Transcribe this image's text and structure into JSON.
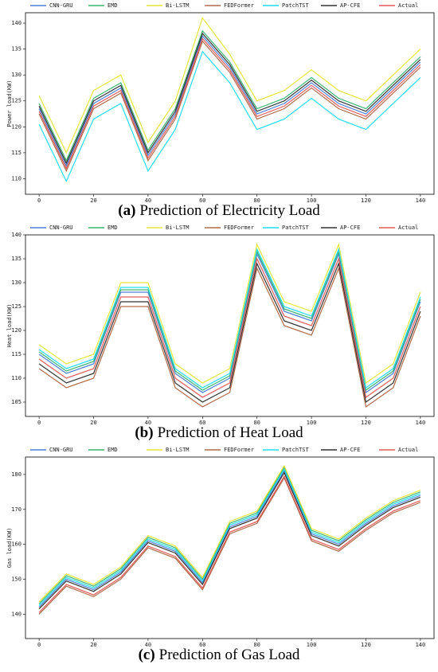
{
  "chart_data": [
    {
      "type": "line",
      "caption_label": "(a)",
      "caption_text": "Prediction of Electricity Load",
      "ylabel": "Power load(KW)",
      "x": [
        0,
        10,
        20,
        30,
        40,
        50,
        60,
        70,
        80,
        90,
        100,
        110,
        120,
        130,
        140
      ],
      "xlim": [
        -5,
        145
      ],
      "xticks": [
        0,
        20,
        40,
        60,
        80,
        100,
        120,
        140
      ],
      "ylim": [
        107,
        142
      ],
      "yticks": [
        110,
        115,
        120,
        125,
        130,
        135,
        140
      ],
      "grid": false,
      "series": [
        {
          "name": "CNN-GRU",
          "color": "#4a7fd6",
          "values": [
            123.5,
            112.5,
            124.5,
            127.5,
            114.5,
            122.5,
            137.5,
            131.5,
            122.5,
            124.5,
            128.5,
            124.5,
            122.5,
            127.5,
            132.5
          ]
        },
        {
          "name": "EMD",
          "color": "#3cb371",
          "values": [
            124.5,
            113.5,
            125.5,
            128.5,
            115.5,
            123.5,
            138.5,
            132.5,
            123.5,
            125.5,
            129.5,
            125.5,
            123.5,
            128.5,
            133.5
          ]
        },
        {
          "name": "Bi-LSTM",
          "color": "#e6e63c",
          "values": [
            126,
            115,
            127,
            130,
            117,
            125,
            141,
            134,
            125,
            127,
            131,
            127,
            125,
            130,
            135
          ]
        },
        {
          "name": "FEDFormer",
          "color": "#b06a4a",
          "values": [
            122.5,
            111.5,
            123.5,
            126.5,
            113.5,
            121.5,
            136.5,
            130.5,
            121.5,
            123.5,
            127.5,
            123.5,
            121.5,
            126.5,
            131.5
          ]
        },
        {
          "name": "PatchTST",
          "color": "#22dcf0",
          "values": [
            120.5,
            109.5,
            121.5,
            124.5,
            111.5,
            119.5,
            134.5,
            128.5,
            119.5,
            121.5,
            125.5,
            121.5,
            119.5,
            124.5,
            129.5
          ]
        },
        {
          "name": "AP-CFE",
          "color": "#333333",
          "values": [
            124,
            113,
            125,
            128,
            115,
            123,
            138,
            132,
            123,
            125,
            129,
            125,
            123,
            128,
            133
          ]
        },
        {
          "name": "Actual",
          "color": "#e05a5a",
          "values": [
            123,
            112,
            124,
            127,
            114,
            122,
            137,
            131,
            122,
            124,
            128,
            124,
            122,
            127,
            132
          ]
        }
      ]
    },
    {
      "type": "line",
      "caption_label": "(b)",
      "caption_text": "Prediction of Heat Load",
      "ylabel": "Heat load(KW)",
      "x": [
        0,
        10,
        20,
        30,
        40,
        50,
        60,
        70,
        80,
        90,
        100,
        110,
        120,
        130,
        140
      ],
      "xlim": [
        -5,
        145
      ],
      "xticks": [
        0,
        20,
        40,
        60,
        80,
        100,
        120,
        140
      ],
      "ylim": [
        102,
        140
      ],
      "yticks": [
        105,
        110,
        115,
        120,
        125,
        130,
        135,
        140
      ],
      "grid": false,
      "series": [
        {
          "name": "CNN-GRU",
          "color": "#4a7fd6",
          "values": [
            115,
            111,
            113,
            128,
            128,
            111,
            107,
            110,
            136,
            124,
            122,
            136,
            107,
            111,
            126
          ]
        },
        {
          "name": "EMD",
          "color": "#3cb371",
          "values": [
            115.5,
            111.5,
            113.5,
            128.5,
            128.5,
            111.5,
            107.5,
            110.5,
            136.5,
            124.5,
            122.5,
            136.5,
            107.5,
            111.5,
            126.5
          ]
        },
        {
          "name": "Bi-LSTM",
          "color": "#e6e63c",
          "values": [
            117,
            113,
            115,
            130,
            130,
            113,
            109,
            112,
            138,
            126,
            124,
            138,
            109,
            113,
            128
          ]
        },
        {
          "name": "FEDFormer",
          "color": "#b06a4a",
          "values": [
            112,
            108,
            110,
            125,
            125,
            108,
            104,
            107,
            133,
            121,
            119,
            133,
            104,
            108,
            123
          ]
        },
        {
          "name": "PatchTST",
          "color": "#22dcf0",
          "values": [
            116,
            112,
            114,
            129,
            129,
            112,
            108,
            111,
            137,
            125,
            123,
            137,
            108,
            112,
            127
          ]
        },
        {
          "name": "AP-CFE",
          "color": "#333333",
          "values": [
            113,
            109,
            111,
            126,
            126,
            109,
            105,
            108,
            134,
            122,
            120,
            134,
            105,
            109,
            124
          ]
        },
        {
          "name": "Actual",
          "color": "#e05a5a",
          "values": [
            114,
            110,
            112,
            127,
            127,
            110,
            106,
            109,
            135,
            123,
            121,
            135,
            106,
            110,
            125
          ]
        }
      ]
    },
    {
      "type": "line",
      "caption_label": "(c)",
      "caption_text": "Prediction of Gas Load",
      "ylabel": "Gas load(KW)",
      "x": [
        0,
        10,
        20,
        30,
        40,
        50,
        60,
        70,
        80,
        90,
        100,
        110,
        120,
        130,
        140
      ],
      "xlim": [
        -5,
        145
      ],
      "xticks": [
        0,
        20,
        40,
        60,
        80,
        100,
        120,
        140
      ],
      "ylim": [
        133,
        185
      ],
      "yticks": [
        140,
        150,
        160,
        170,
        180
      ],
      "grid": false,
      "series": [
        {
          "name": "CNN-GRU",
          "color": "#4a7fd6",
          "values": [
            142,
            150,
            147,
            152,
            161,
            158,
            149,
            165,
            168,
            181,
            163,
            160,
            166,
            171,
            174
          ]
        },
        {
          "name": "EMD",
          "color": "#3cb371",
          "values": [
            143,
            151,
            148,
            153,
            162,
            159,
            150,
            166,
            169,
            182,
            164,
            161,
            167,
            172,
            175
          ]
        },
        {
          "name": "Bi-LSTM",
          "color": "#e6e63c",
          "values": [
            143.5,
            151.5,
            148.5,
            153.5,
            162.5,
            159.5,
            150.5,
            166.5,
            169.5,
            182.5,
            164.5,
            161.5,
            167.5,
            172.5,
            175.5
          ]
        },
        {
          "name": "FEDFormer",
          "color": "#b06a4a",
          "values": [
            140,
            148,
            145,
            150,
            159,
            156,
            147,
            163,
            166,
            179,
            161,
            158,
            164,
            169,
            172
          ]
        },
        {
          "name": "PatchTST",
          "color": "#22dcf0",
          "values": [
            142.5,
            150.5,
            147.5,
            152.5,
            161.5,
            158.5,
            149.5,
            165.5,
            168.5,
            181.5,
            163.5,
            160.5,
            166.5,
            171.5,
            174.5
          ]
        },
        {
          "name": "AP-CFE",
          "color": "#333333",
          "values": [
            141.5,
            149.5,
            146.5,
            151.5,
            160.5,
            157.5,
            148.5,
            164.5,
            167.5,
            180.5,
            162.5,
            159.5,
            165.5,
            170.5,
            173.5
          ]
        },
        {
          "name": "Actual",
          "color": "#e05a5a",
          "values": [
            140.5,
            148.5,
            145.5,
            150.5,
            159.5,
            156.5,
            147.5,
            163.5,
            166.5,
            179.5,
            161.5,
            158.5,
            164.5,
            169.5,
            172.5
          ]
        }
      ]
    }
  ]
}
